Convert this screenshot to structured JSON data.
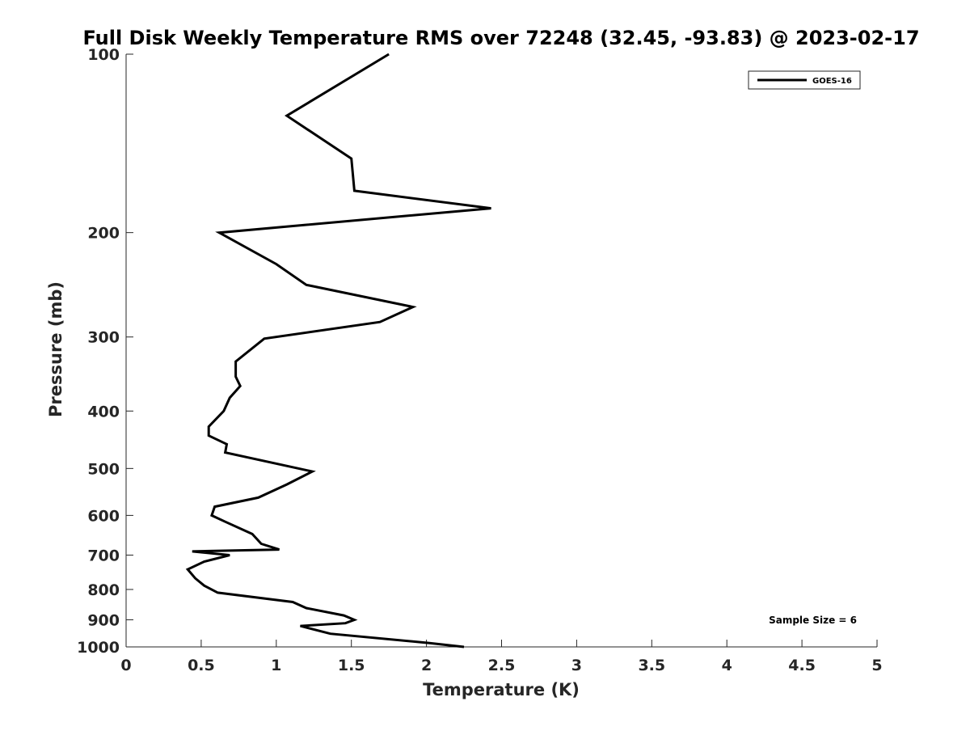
{
  "chart_data": {
    "type": "line",
    "title": "Full Disk Weekly Temperature RMS over 72248 (32.45, -93.83) @ 2023-02-17",
    "xlabel": "Temperature (K)",
    "ylabel": "Pressure (mb)",
    "xlim": [
      0,
      5
    ],
    "ylim": [
      100,
      1000
    ],
    "y_scale": "log",
    "y_reversed": true,
    "grid": false,
    "legend_position": "top-right",
    "x_ticks": [
      "0",
      "0.5",
      "1",
      "1.5",
      "2",
      "2.5",
      "3",
      "3.5",
      "4",
      "4.5",
      "5"
    ],
    "y_ticks": [
      "100",
      "200",
      "300",
      "400",
      "500",
      "600",
      "700",
      "800",
      "900",
      "1000"
    ],
    "annotation": "Sample Size = 6",
    "line_color": "#000000",
    "series": [
      {
        "name": "GOES-16",
        "x": [
          1.75,
          1.07,
          1.5,
          1.52,
          2.43,
          0.62,
          1.0,
          1.2,
          1.91,
          1.69,
          0.92,
          0.73,
          0.73,
          0.76,
          0.69,
          0.65,
          0.55,
          0.55,
          0.67,
          0.66,
          1.24,
          1.07,
          0.88,
          0.59,
          0.57,
          0.66,
          0.84,
          0.9,
          1.02,
          0.44,
          0.69,
          0.52,
          0.41,
          0.46,
          0.52,
          0.61,
          1.11,
          1.2,
          1.45,
          1.52,
          1.46,
          1.16,
          1.36,
          2.02,
          2.25
        ],
        "y": [
          100,
          127,
          150,
          170,
          182,
          200,
          226,
          245,
          267,
          283,
          302,
          330,
          350,
          363,
          380,
          400,
          425,
          440,
          455,
          470,
          506,
          532,
          560,
          580,
          600,
          615,
          645,
          670,
          685,
          690,
          700,
          718,
          740,
          766,
          788,
          810,
          840,
          860,
          885,
          900,
          912,
          922,
          950,
          985,
          1000
        ]
      }
    ]
  }
}
